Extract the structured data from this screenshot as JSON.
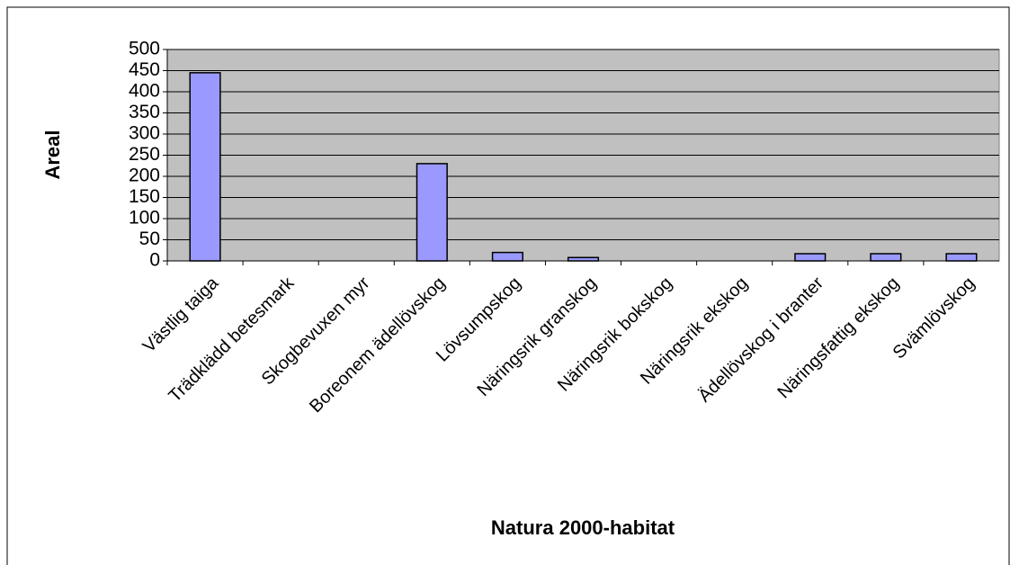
{
  "chart_data": {
    "type": "bar",
    "x_label": "Natura 2000-habitat",
    "y_label": "Areal",
    "categories": [
      "Västlig taiga",
      "Trädklädd betesmark",
      "Skogbevuxen myr",
      "Boreonem ädellövskog",
      "Lövsumpskog",
      "Näringsrik granskog",
      "Näringsrik bokskog",
      "Näringsrik ekskog",
      "Ädellövskog i branter",
      "Näringsfattig ekskog",
      "Svämlövskog"
    ],
    "values": [
      445,
      0,
      0,
      230,
      20,
      8,
      0,
      0,
      17,
      17,
      17
    ],
    "color": "#9999ff",
    "ylim": [
      0,
      500
    ],
    "yticks": [
      0,
      50,
      100,
      150,
      200,
      250,
      300,
      350,
      400,
      450,
      500
    ],
    "grid": true
  }
}
